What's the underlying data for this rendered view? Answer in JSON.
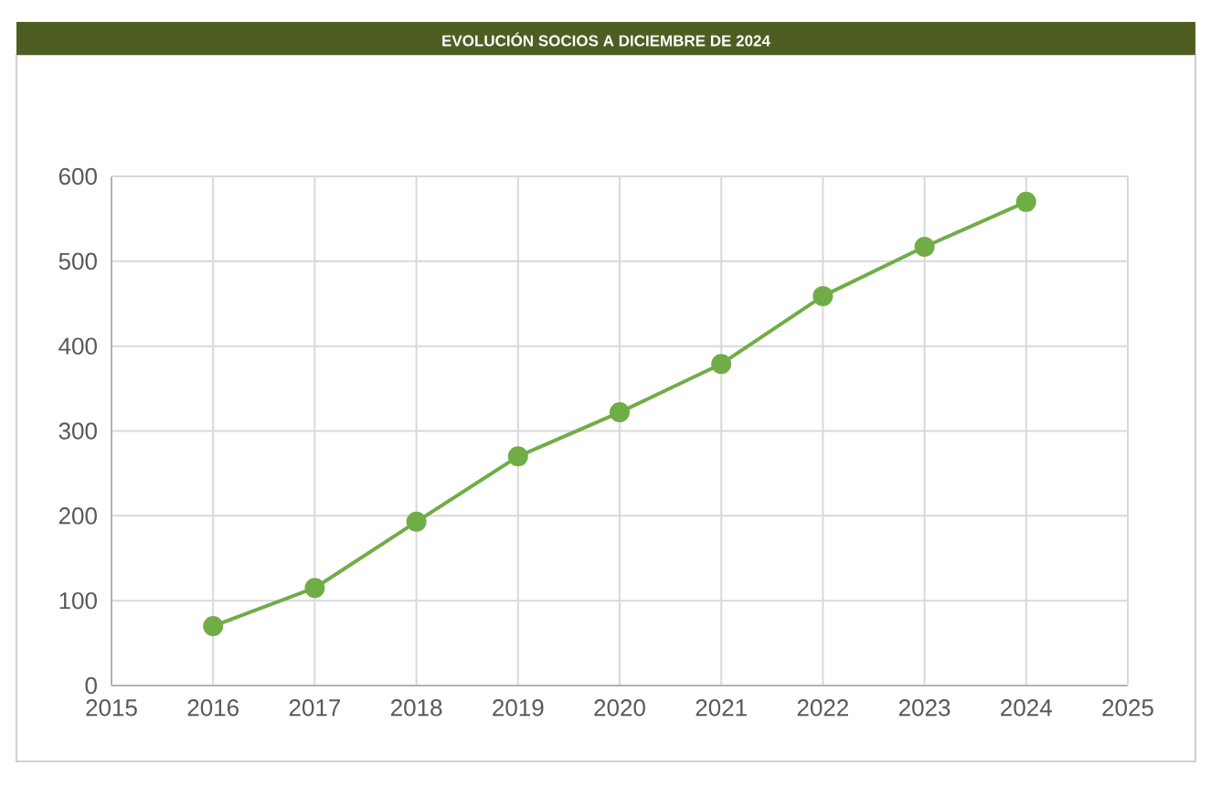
{
  "chart_data": {
    "type": "line",
    "title": "EVOLUCIÓN SOCIOS A DICIEMBRE DE 2024",
    "x": [
      2016,
      2017,
      2018,
      2019,
      2020,
      2021,
      2022,
      2023,
      2024
    ],
    "values": [
      70,
      115,
      193,
      270,
      322,
      379,
      459,
      517,
      570
    ],
    "color": "#70ad47",
    "marker": "circle",
    "grid": true,
    "xlim": [
      2015,
      2025
    ],
    "xticks": [
      2015,
      2016,
      2017,
      2018,
      2019,
      2020,
      2021,
      2022,
      2023,
      2024,
      2025
    ],
    "ylim": [
      0,
      600
    ],
    "yticks": [
      0,
      100,
      200,
      300,
      400,
      500,
      600
    ]
  }
}
